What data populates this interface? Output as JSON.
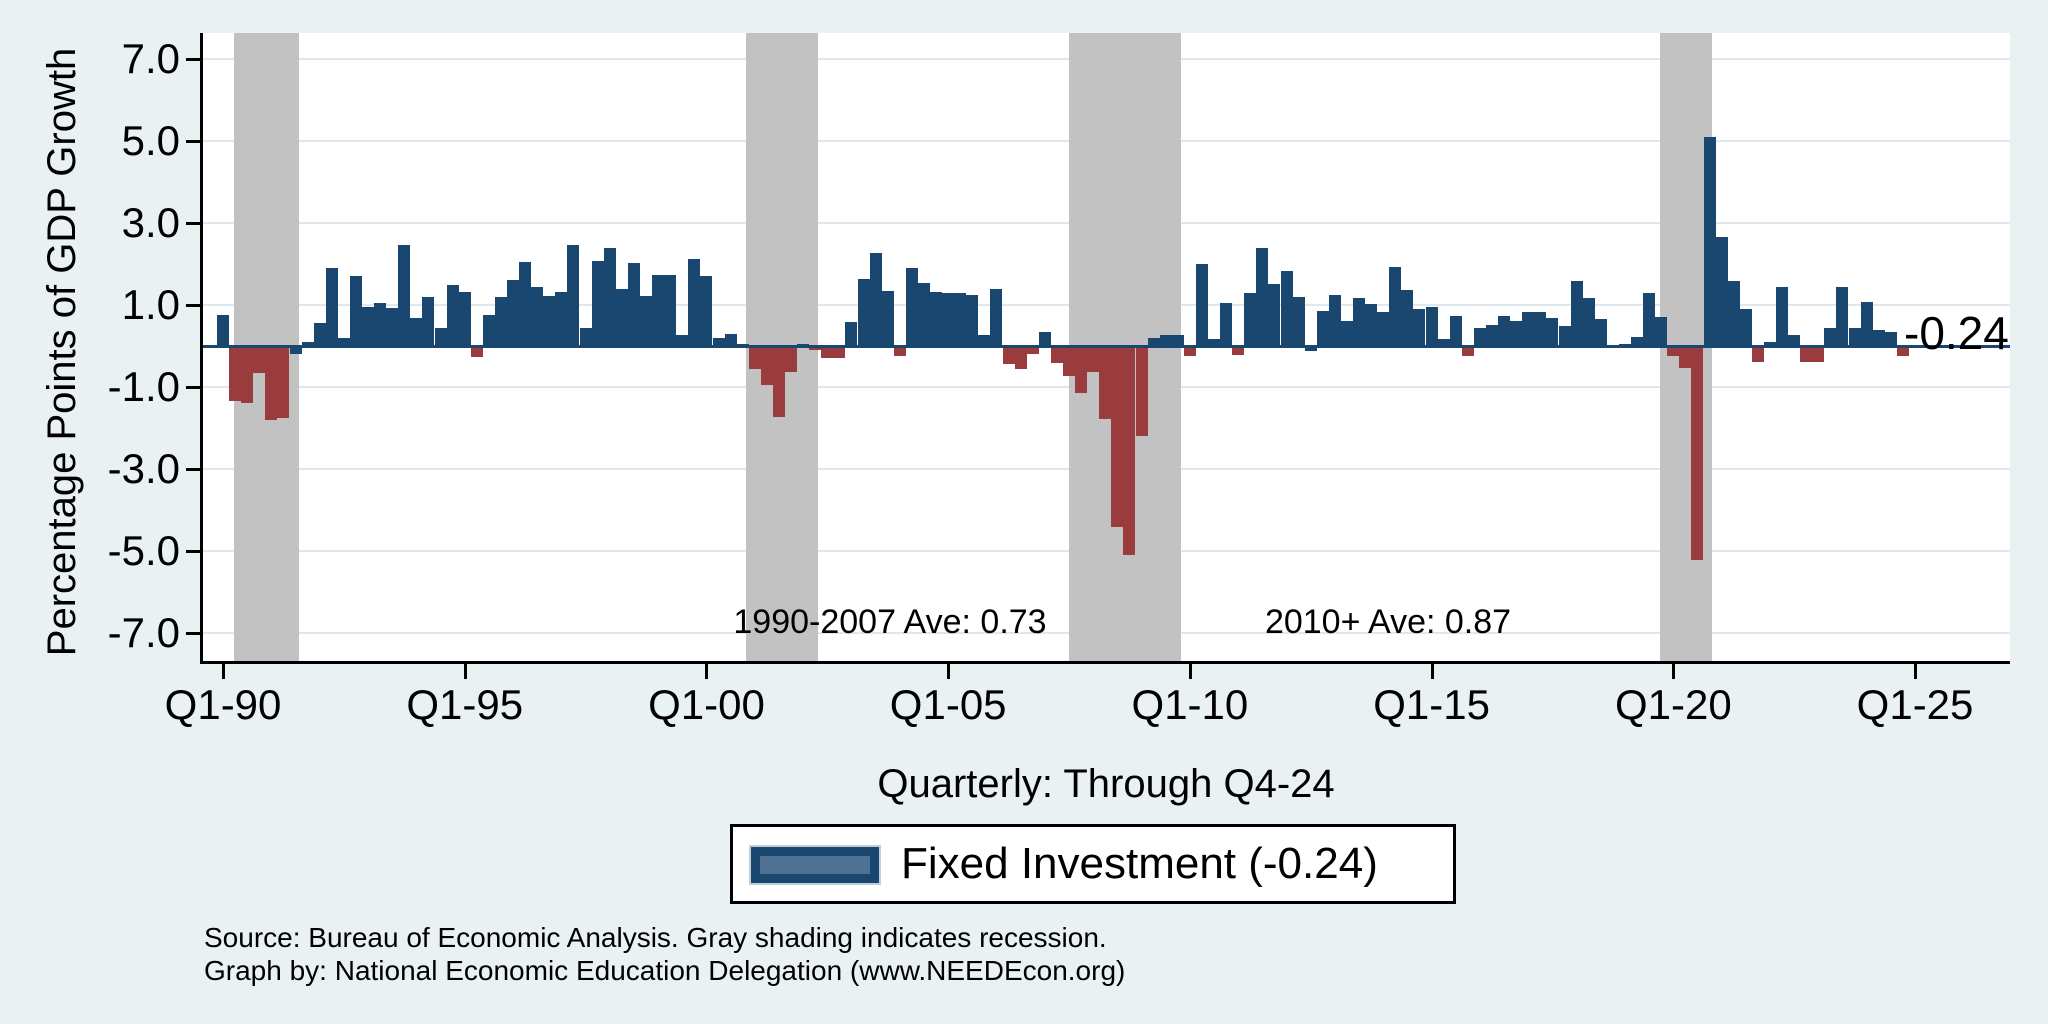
{
  "chart_data": {
    "type": "bar",
    "ylabel": "Percentage Points of GDP Growth",
    "xlabel": "Quarterly: Through Q4-24",
    "start": "1990Q1",
    "frequency": "quarterly",
    "ylim": [
      -7,
      7
    ],
    "grid": true,
    "legend_position": "bottom",
    "y_ticks": [
      {
        "v": 7,
        "label": "7.0"
      },
      {
        "v": 5,
        "label": "5.0"
      },
      {
        "v": 3,
        "label": "3.0"
      },
      {
        "v": 1,
        "label": "1.0"
      },
      {
        "v": -1,
        "label": "-1.0"
      },
      {
        "v": -3,
        "label": "-3.0"
      },
      {
        "v": -5,
        "label": "-5.0"
      },
      {
        "v": -7,
        "label": "-7.0"
      }
    ],
    "x_ticks": [
      {
        "q_index": 0,
        "label": "Q1-90"
      },
      {
        "q_index": 20,
        "label": "Q1-95"
      },
      {
        "q_index": 40,
        "label": "Q1-00"
      },
      {
        "q_index": 60,
        "label": "Q1-05"
      },
      {
        "q_index": 80,
        "label": "Q1-10"
      },
      {
        "q_index": 100,
        "label": "Q1-15"
      },
      {
        "q_index": 120,
        "label": "Q1-20"
      },
      {
        "q_index": 140,
        "label": "Q1-25"
      }
    ],
    "series": [
      {
        "name": "Fixed Investment",
        "values": [
          0.75,
          -1.35,
          -1.4,
          -0.65,
          -1.8,
          -1.75,
          -0.2,
          0.1,
          0.57,
          1.89,
          0.2,
          1.7,
          0.96,
          1.04,
          0.92,
          2.46,
          0.67,
          1.2,
          0.43,
          1.49,
          1.32,
          -0.26,
          0.75,
          1.2,
          1.61,
          2.05,
          1.43,
          1.21,
          1.32,
          2.46,
          0.45,
          2.08,
          2.38,
          1.39,
          2.02,
          1.21,
          1.73,
          1.73,
          0.27,
          2.13,
          1.7,
          0.19,
          0.29,
          0.05,
          -0.56,
          -0.95,
          -1.74,
          -0.64,
          0.05,
          -0.1,
          -0.3,
          -0.3,
          0.58,
          1.63,
          2.26,
          1.35,
          -0.25,
          1.9,
          1.53,
          1.31,
          1.28,
          1.28,
          1.23,
          0.27,
          1.4,
          -0.45,
          -0.55,
          -0.19,
          0.35,
          -0.41,
          -0.74,
          -1.15,
          -0.63,
          -1.78,
          -4.4,
          -5.1,
          -2.2,
          0.19,
          0.27,
          0.27,
          -0.24,
          2.0,
          0.17,
          1.05,
          -0.22,
          1.28,
          2.38,
          1.51,
          1.83,
          1.19,
          -0.12,
          0.86,
          1.23,
          0.62,
          1.16,
          1.02,
          0.82,
          1.93,
          1.37,
          0.9,
          0.94,
          0.17,
          0.72,
          -0.25,
          0.45,
          0.51,
          0.72,
          0.62,
          0.84,
          0.82,
          0.67,
          0.48,
          1.59,
          1.16,
          0.66,
          0.03,
          0.05,
          0.21,
          1.29,
          0.7,
          -0.24,
          -0.54,
          -5.2,
          5.1,
          2.65,
          1.59,
          0.9,
          -0.4,
          0.1,
          1.43,
          0.27,
          -0.38,
          -0.38,
          0.43,
          1.43,
          0.45,
          1.08,
          0.4,
          0.35,
          -0.24
        ]
      }
    ],
    "blue_negative_indices": [
      6,
      90
    ],
    "recession_bands_q_index": [
      [
        1.4,
        6.8
      ],
      [
        43.8,
        49.7
      ],
      [
        70.5,
        79.8
      ],
      [
        119.4,
        123.7
      ]
    ],
    "annotations": [
      {
        "text": "1990-2007 Ave: 0.73"
      },
      {
        "text": "2010+ Ave: 0.87"
      }
    ],
    "end_label": "-0.24",
    "legend_label": "Fixed Investment (-0.24)",
    "colors": {
      "positive": "#1a476f",
      "negative": "#9a3b3d",
      "recession": "#c2c2c2",
      "background": "#e9f1f3",
      "plot_background": "#ffffff",
      "gridline": "#dde9ec",
      "zero_line": "#1a476f",
      "legend_swatch_fill": "#4e7194"
    }
  },
  "footer": {
    "source": "Source: Bureau of Economic Analysis. Gray shading indicates recession.",
    "credit": "Graph by: National Economic Education Delegation (www.NEEDEcon.org)"
  }
}
